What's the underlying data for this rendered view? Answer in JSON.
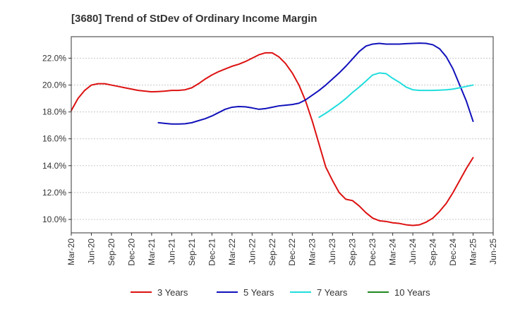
{
  "chart_data": {
    "type": "line",
    "title": "[3680]  Trend of StDev of Ordinary Income Margin",
    "xlabel": "",
    "ylabel": "",
    "x_tick_labels": [
      "Mar-20",
      "Jun-20",
      "Sep-20",
      "Dec-20",
      "Mar-21",
      "Jun-21",
      "Sep-21",
      "Dec-21",
      "Mar-22",
      "Jun-22",
      "Sep-22",
      "Dec-22",
      "Mar-23",
      "Jun-23",
      "Sep-23",
      "Dec-23",
      "Mar-24",
      "Jun-24",
      "Sep-24",
      "Dec-24",
      "Mar-25",
      "Jun-25"
    ],
    "y_tick_labels": [
      "10.0%",
      "12.0%",
      "14.0%",
      "16.0%",
      "18.0%",
      "20.0%",
      "22.0%"
    ],
    "y_ticks": [
      10,
      12,
      14,
      16,
      18,
      20,
      22
    ],
    "ylim": [
      9.0,
      23.6
    ],
    "grid": true,
    "legend_position": "bottom",
    "series": [
      {
        "name": "3 Years",
        "color": "#dd1111",
        "values": [
          18.1,
          19.0,
          19.6,
          20.0,
          20.1,
          20.1,
          20.0,
          19.9,
          19.8,
          19.7,
          19.6,
          19.55,
          19.5,
          19.52,
          19.55,
          19.6,
          19.6,
          19.65,
          19.8,
          20.1,
          20.45,
          20.75,
          21.0,
          21.2,
          21.4,
          21.55,
          21.75,
          22.0,
          22.25,
          22.4,
          22.4,
          22.1,
          21.6,
          20.9,
          20.0,
          18.8,
          17.3,
          15.6,
          13.9,
          12.9,
          12.0,
          11.5,
          11.4,
          11.0,
          10.5,
          10.1,
          9.9,
          9.85,
          9.75,
          9.7,
          9.6,
          9.55,
          9.6,
          9.8,
          10.1,
          10.6,
          11.2,
          12.0,
          12.9,
          13.8,
          14.6
        ],
        "start_index": 0
      },
      {
        "name": "5 Years",
        "color": "#1111bb",
        "values": [
          17.2,
          17.15,
          17.1,
          17.1,
          17.12,
          17.2,
          17.35,
          17.5,
          17.7,
          17.95,
          18.2,
          18.35,
          18.4,
          18.38,
          18.3,
          18.2,
          18.25,
          18.35,
          18.45,
          18.5,
          18.55,
          18.65,
          18.9,
          19.25,
          19.6,
          20.0,
          20.45,
          20.9,
          21.4,
          21.95,
          22.5,
          22.9,
          23.05,
          23.1,
          23.05,
          23.05,
          23.05,
          23.08,
          23.1,
          23.12,
          23.1,
          23.0,
          22.7,
          22.1,
          21.2,
          20.0,
          18.8,
          17.3
        ],
        "start_index": 13
      },
      {
        "name": "7 Years",
        "color": "#22dddd",
        "values": [
          17.6,
          17.9,
          18.25,
          18.6,
          19.0,
          19.45,
          19.85,
          20.3,
          20.75,
          20.9,
          20.85,
          20.5,
          20.2,
          19.85,
          19.65,
          19.6,
          19.6,
          19.6,
          19.62,
          19.65,
          19.7,
          19.8,
          19.9,
          20.0
        ],
        "start_index": 37
      },
      {
        "name": "10 Years",
        "color": "#228822",
        "values": [],
        "start_index": 0
      }
    ]
  }
}
